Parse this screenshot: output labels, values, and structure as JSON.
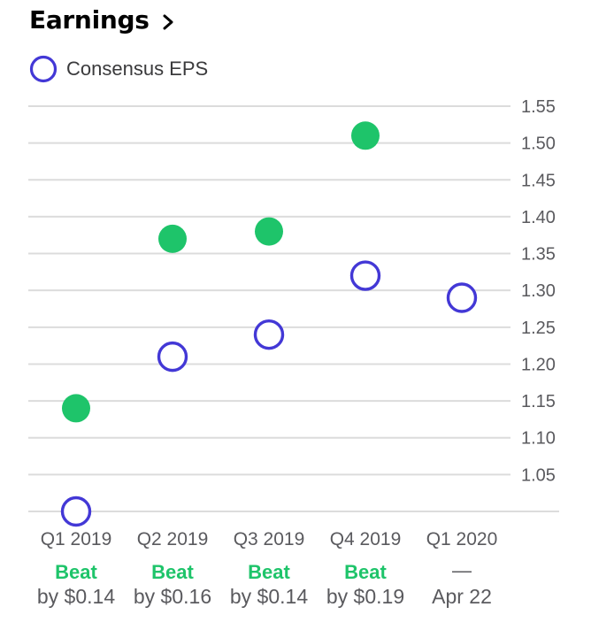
{
  "header": {
    "title": "Earnings",
    "chevron_icon": "chevron-right-icon"
  },
  "legend": {
    "label": "Consensus EPS",
    "marker_icon": "hollow-circle-icon"
  },
  "colors": {
    "actual": "#1ec46a",
    "consensus": "#4338d6",
    "grid": "#dcdcdc",
    "tick_text": "#5a5a5e",
    "beat_text": "#1ec46a"
  },
  "chart_data": {
    "type": "scatter",
    "categories": [
      "Q1 2019",
      "Q2 2019",
      "Q3 2019",
      "Q4 2019",
      "Q1 2020"
    ],
    "ylim": [
      1.0,
      1.55
    ],
    "y_ticks": [
      "1.55",
      "1.50",
      "1.45",
      "1.40",
      "1.35",
      "1.30",
      "1.25",
      "1.20",
      "1.15",
      "1.10",
      "1.05"
    ],
    "grid": true,
    "legend_position": "top-left",
    "series": [
      {
        "name": "Consensus EPS",
        "style": "hollow",
        "values": [
          1.0,
          1.21,
          1.24,
          1.32,
          1.29
        ]
      },
      {
        "style": "filled",
        "values": [
          1.14,
          1.37,
          1.38,
          1.51,
          null
        ]
      }
    ],
    "results": [
      {
        "status": "Beat",
        "detail": "by $0.14"
      },
      {
        "status": "Beat",
        "detail": "by $0.16"
      },
      {
        "status": "Beat",
        "detail": "by $0.14"
      },
      {
        "status": "Beat",
        "detail": "by $0.19"
      },
      {
        "status": "—",
        "detail": "Apr 22"
      }
    ]
  }
}
